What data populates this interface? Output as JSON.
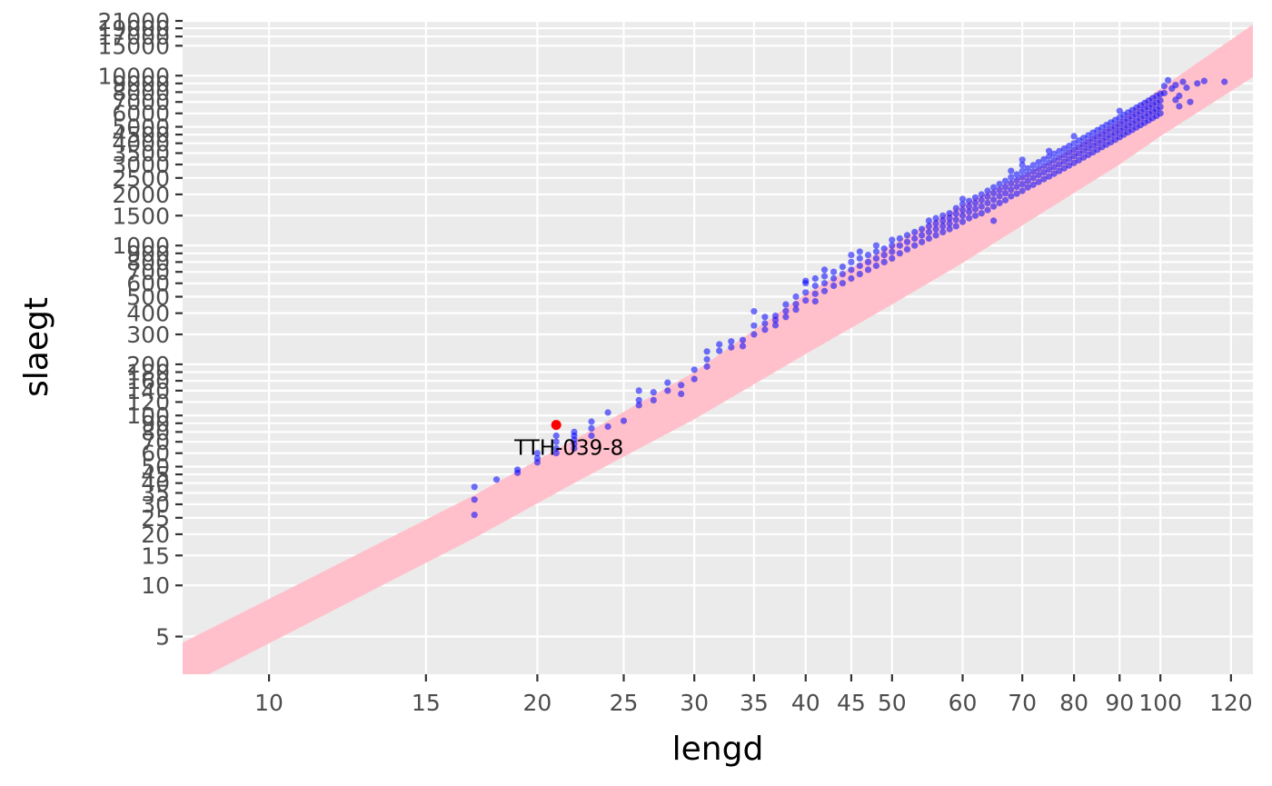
{
  "chart_data": {
    "type": "scatter",
    "xlabel": "lengd",
    "ylabel": "slaegt",
    "x_scale": "log",
    "y_scale": "log",
    "xlim": [
      8.0,
      127
    ],
    "ylim": [
      3.0,
      21000
    ],
    "x_ticks": [
      10,
      15,
      20,
      25,
      30,
      35,
      40,
      45,
      50,
      60,
      70,
      80,
      90,
      100,
      120
    ],
    "y_ticks": [
      5,
      10,
      15,
      20,
      25,
      30,
      35,
      40,
      45,
      50,
      60,
      70,
      80,
      90,
      100,
      120,
      140,
      160,
      180,
      200,
      300,
      400,
      500,
      600,
      700,
      800,
      900,
      1000,
      1500,
      2000,
      2500,
      3000,
      3500,
      4000,
      4500,
      5000,
      6000,
      7000,
      8000,
      9000,
      10000,
      15000,
      17000,
      19000,
      21000
    ],
    "band": {
      "x": [
        8.0,
        17,
        22,
        30,
        40,
        50,
        60,
        75,
        90,
        100,
        127
      ],
      "lower": [
        2.5,
        19,
        40,
        95,
        230,
        450,
        790,
        1650,
        3000,
        4400,
        9800
      ],
      "upper": [
        4.6,
        34,
        72,
        180,
        520,
        1010,
        1750,
        3100,
        5500,
        8400,
        20000
      ]
    },
    "highlight": {
      "x": 21,
      "y": 88,
      "label": "TTH-039-8"
    },
    "points": [
      [
        17,
        26
      ],
      [
        17,
        32
      ],
      [
        17,
        38
      ],
      [
        18,
        42
      ],
      [
        19,
        46
      ],
      [
        19,
        48
      ],
      [
        20,
        53
      ],
      [
        20,
        56
      ],
      [
        20,
        60
      ],
      [
        21,
        60
      ],
      [
        21,
        64
      ],
      [
        21,
        70
      ],
      [
        21,
        76
      ],
      [
        22,
        64
      ],
      [
        22,
        68
      ],
      [
        22,
        72
      ],
      [
        22,
        76
      ],
      [
        22,
        80
      ],
      [
        23,
        76
      ],
      [
        23,
        84
      ],
      [
        23,
        92
      ],
      [
        24,
        86
      ],
      [
        24,
        104
      ],
      [
        25,
        93
      ],
      [
        26,
        115
      ],
      [
        26,
        123
      ],
      [
        26,
        140
      ],
      [
        27,
        123
      ],
      [
        27,
        137
      ],
      [
        28,
        140
      ],
      [
        28,
        156
      ],
      [
        29,
        134
      ],
      [
        29,
        151
      ],
      [
        30,
        164
      ],
      [
        30,
        186
      ],
      [
        31,
        194
      ],
      [
        31,
        214
      ],
      [
        31,
        238
      ],
      [
        32,
        240
      ],
      [
        32,
        262
      ],
      [
        33,
        252
      ],
      [
        33,
        273
      ],
      [
        34,
        256
      ],
      [
        34,
        278
      ],
      [
        35,
        300
      ],
      [
        35,
        338
      ],
      [
        35,
        410
      ],
      [
        36,
        320
      ],
      [
        36,
        348
      ],
      [
        36,
        380
      ],
      [
        37,
        340
      ],
      [
        37,
        364
      ],
      [
        37,
        386
      ],
      [
        38,
        380
      ],
      [
        38,
        412
      ],
      [
        38,
        450
      ],
      [
        39,
        420
      ],
      [
        39,
        452
      ],
      [
        39,
        500
      ],
      [
        40,
        475
      ],
      [
        40,
        530
      ],
      [
        40,
        600
      ],
      [
        40,
        620
      ],
      [
        41,
        470
      ],
      [
        41,
        520
      ],
      [
        41,
        580
      ],
      [
        41,
        640
      ],
      [
        42,
        540
      ],
      [
        42,
        600
      ],
      [
        42,
        660
      ],
      [
        42,
        720
      ],
      [
        43,
        580
      ],
      [
        43,
        640
      ],
      [
        43,
        700
      ],
      [
        44,
        600
      ],
      [
        44,
        680
      ],
      [
        44,
        750
      ],
      [
        45,
        640
      ],
      [
        45,
        720
      ],
      [
        45,
        800
      ],
      [
        45,
        880
      ],
      [
        46,
        680
      ],
      [
        46,
        760
      ],
      [
        46,
        840
      ],
      [
        46,
        920
      ],
      [
        47,
        720
      ],
      [
        47,
        800
      ],
      [
        47,
        880
      ],
      [
        48,
        760
      ],
      [
        48,
        840
      ],
      [
        48,
        920
      ],
      [
        48,
        1000
      ],
      [
        49,
        800
      ],
      [
        49,
        880
      ],
      [
        49,
        960
      ],
      [
        50,
        840
      ],
      [
        50,
        920
      ],
      [
        50,
        1000
      ],
      [
        50,
        1080
      ],
      [
        51,
        900
      ],
      [
        51,
        1000
      ],
      [
        51,
        1100
      ],
      [
        52,
        950
      ],
      [
        52,
        1050
      ],
      [
        52,
        1150
      ],
      [
        53,
        1000
      ],
      [
        53,
        1100
      ],
      [
        53,
        1200
      ],
      [
        54,
        1050
      ],
      [
        54,
        1150
      ],
      [
        54,
        1250
      ],
      [
        55,
        1100
      ],
      [
        55,
        1200
      ],
      [
        55,
        1300
      ],
      [
        55,
        1400
      ],
      [
        56,
        1150
      ],
      [
        56,
        1250
      ],
      [
        56,
        1350
      ],
      [
        56,
        1450
      ],
      [
        57,
        1200
      ],
      [
        57,
        1300
      ],
      [
        57,
        1400
      ],
      [
        57,
        1500
      ],
      [
        58,
        1250
      ],
      [
        58,
        1350
      ],
      [
        58,
        1450
      ],
      [
        58,
        1550
      ],
      [
        59,
        1300
      ],
      [
        59,
        1420
      ],
      [
        59,
        1540
      ],
      [
        59,
        1660
      ],
      [
        60,
        1380
      ],
      [
        60,
        1500
      ],
      [
        60,
        1620
      ],
      [
        60,
        1750
      ],
      [
        60,
        1880
      ],
      [
        61,
        1450
      ],
      [
        61,
        1580
      ],
      [
        61,
        1700
      ],
      [
        61,
        1830
      ],
      [
        62,
        1500
      ],
      [
        62,
        1640
      ],
      [
        62,
        1780
      ],
      [
        62,
        1920
      ],
      [
        63,
        1550
      ],
      [
        63,
        1700
      ],
      [
        63,
        1850
      ],
      [
        63,
        2000
      ],
      [
        64,
        1620
      ],
      [
        64,
        1780
      ],
      [
        64,
        1940
      ],
      [
        64,
        2100
      ],
      [
        65,
        1700
      ],
      [
        65,
        1860
      ],
      [
        65,
        2030
      ],
      [
        65,
        2200
      ],
      [
        65,
        1400
      ],
      [
        66,
        1780
      ],
      [
        66,
        1950
      ],
      [
        66,
        2120
      ],
      [
        66,
        2300
      ],
      [
        67,
        1850
      ],
      [
        67,
        2030
      ],
      [
        67,
        2210
      ],
      [
        67,
        2400
      ],
      [
        68,
        1950
      ],
      [
        68,
        2130
      ],
      [
        68,
        2320
      ],
      [
        68,
        2520
      ],
      [
        68,
        2750
      ],
      [
        69,
        2020
      ],
      [
        69,
        2220
      ],
      [
        69,
        2420
      ],
      [
        69,
        2620
      ],
      [
        70,
        2100
      ],
      [
        70,
        2300
      ],
      [
        70,
        2520
      ],
      [
        70,
        2740
      ],
      [
        70,
        2980
      ],
      [
        70,
        3200
      ],
      [
        71,
        2200
      ],
      [
        71,
        2400
      ],
      [
        71,
        2620
      ],
      [
        71,
        2850
      ],
      [
        72,
        2280
      ],
      [
        72,
        2500
      ],
      [
        72,
        2730
      ],
      [
        72,
        2970
      ],
      [
        73,
        2370
      ],
      [
        73,
        2600
      ],
      [
        73,
        2840
      ],
      [
        73,
        3090
      ],
      [
        74,
        2460
      ],
      [
        74,
        2700
      ],
      [
        74,
        2950
      ],
      [
        74,
        3220
      ],
      [
        75,
        2550
      ],
      [
        75,
        2800
      ],
      [
        75,
        3060
      ],
      [
        75,
        3340
      ],
      [
        75,
        3600
      ],
      [
        76,
        2650
      ],
      [
        76,
        2900
      ],
      [
        76,
        3170
      ],
      [
        76,
        3460
      ],
      [
        77,
        2750
      ],
      [
        77,
        3010
      ],
      [
        77,
        3290
      ],
      [
        77,
        3590
      ],
      [
        78,
        2850
      ],
      [
        78,
        3120
      ],
      [
        78,
        3410
      ],
      [
        78,
        3720
      ],
      [
        79,
        2960
      ],
      [
        79,
        3240
      ],
      [
        79,
        3540
      ],
      [
        79,
        3860
      ],
      [
        80,
        3070
      ],
      [
        80,
        3360
      ],
      [
        80,
        3670
      ],
      [
        80,
        4000
      ],
      [
        80,
        4400
      ],
      [
        81,
        3180
      ],
      [
        81,
        3480
      ],
      [
        81,
        3800
      ],
      [
        81,
        4150
      ],
      [
        82,
        3300
      ],
      [
        82,
        3610
      ],
      [
        82,
        3940
      ],
      [
        82,
        4300
      ],
      [
        83,
        3420
      ],
      [
        83,
        3740
      ],
      [
        83,
        4080
      ],
      [
        83,
        4450
      ],
      [
        84,
        3540
      ],
      [
        84,
        3870
      ],
      [
        84,
        4230
      ],
      [
        84,
        4610
      ],
      [
        85,
        3670
      ],
      [
        85,
        4010
      ],
      [
        85,
        4380
      ],
      [
        85,
        4780
      ],
      [
        86,
        3800
      ],
      [
        86,
        4150
      ],
      [
        86,
        4530
      ],
      [
        86,
        4950
      ],
      [
        87,
        3930
      ],
      [
        87,
        4300
      ],
      [
        87,
        4690
      ],
      [
        87,
        5120
      ],
      [
        88,
        4060
      ],
      [
        88,
        4440
      ],
      [
        88,
        4850
      ],
      [
        88,
        5300
      ],
      [
        89,
        4200
      ],
      [
        89,
        4590
      ],
      [
        89,
        5010
      ],
      [
        89,
        5480
      ],
      [
        90,
        4350
      ],
      [
        90,
        4750
      ],
      [
        90,
        5190
      ],
      [
        90,
        5670
      ],
      [
        90,
        6200
      ],
      [
        91,
        4500
      ],
      [
        91,
        4920
      ],
      [
        91,
        5370
      ],
      [
        91,
        5870
      ],
      [
        92,
        4650
      ],
      [
        92,
        5080
      ],
      [
        92,
        5550
      ],
      [
        92,
        6070
      ],
      [
        93,
        4800
      ],
      [
        93,
        5250
      ],
      [
        93,
        5740
      ],
      [
        93,
        6270
      ],
      [
        94,
        4960
      ],
      [
        94,
        5420
      ],
      [
        94,
        5930
      ],
      [
        94,
        6480
      ],
      [
        95,
        5120
      ],
      [
        95,
        5600
      ],
      [
        95,
        6120
      ],
      [
        95,
        6690
      ],
      [
        96,
        5280
      ],
      [
        96,
        5780
      ],
      [
        96,
        6320
      ],
      [
        96,
        6900
      ],
      [
        97,
        5450
      ],
      [
        97,
        5960
      ],
      [
        97,
        6520
      ],
      [
        97,
        7130
      ],
      [
        98,
        5620
      ],
      [
        98,
        6150
      ],
      [
        98,
        6730
      ],
      [
        98,
        7360
      ],
      [
        99,
        5800
      ],
      [
        99,
        6340
      ],
      [
        99,
        6940
      ],
      [
        99,
        7600
      ],
      [
        100,
        6000
      ],
      [
        100,
        6550
      ],
      [
        100,
        7150
      ],
      [
        100,
        7800
      ],
      [
        101,
        7900
      ],
      [
        101,
        8700
      ],
      [
        102,
        9400
      ],
      [
        103,
        8400
      ],
      [
        104,
        7200
      ],
      [
        104,
        8800
      ],
      [
        105,
        6600
      ],
      [
        105,
        7600
      ],
      [
        106,
        9200
      ],
      [
        107,
        8500
      ],
      [
        108,
        7000
      ],
      [
        110,
        9000
      ],
      [
        112,
        9300
      ],
      [
        118,
        9200
      ]
    ]
  }
}
